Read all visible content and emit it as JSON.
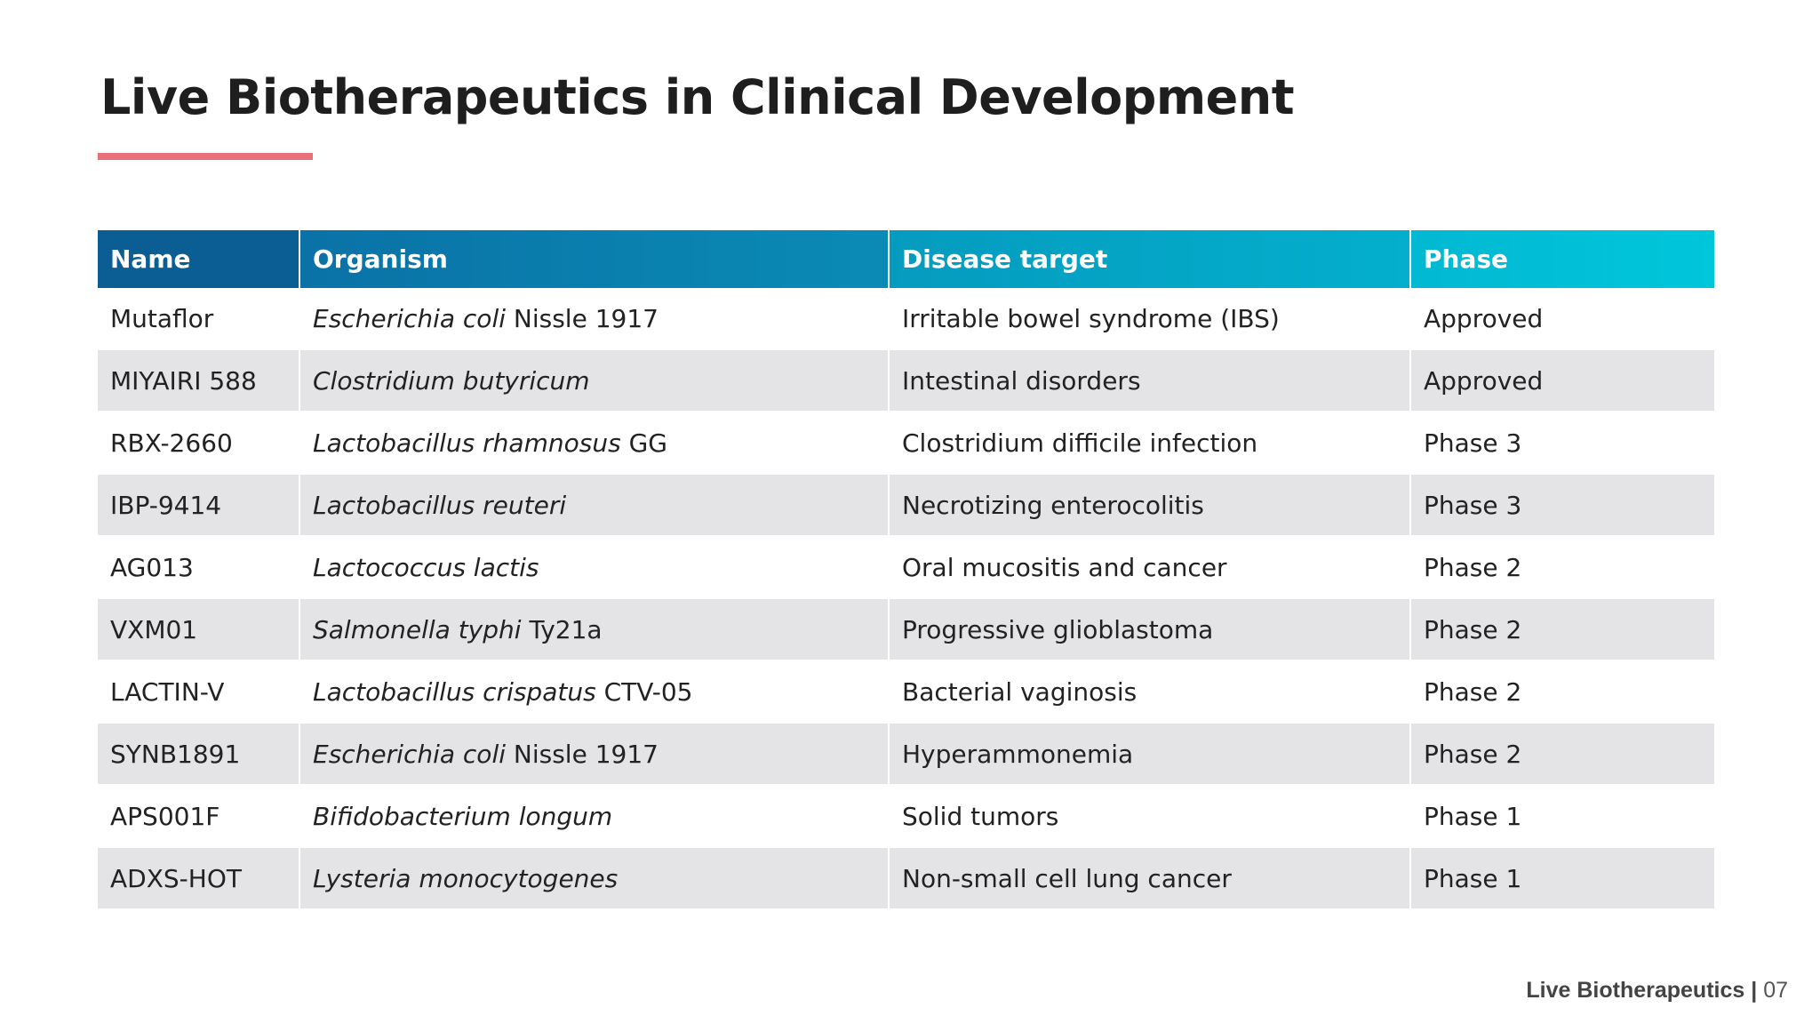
{
  "header": {
    "title": "Live Biotherapeutics in Clinical Development"
  },
  "table": {
    "columns": [
      "Name",
      "Organism",
      "Disease target",
      "Phase"
    ],
    "rows": [
      {
        "name": "Mutaflor",
        "organism": {
          "species": "Escherichia coli",
          "strain": "Nissle 1917"
        },
        "target": "Irritable bowel syndrome (IBS)",
        "phase": "Approved"
      },
      {
        "name": "MIYAIRI 588",
        "organism": {
          "species": "Clostridium butyricum"
        },
        "target": "Intestinal disorders",
        "phase": "Approved"
      },
      {
        "name": "RBX-2660",
        "organism": {
          "species": "Lactobacillus rhamnosus",
          "strain": "GG"
        },
        "target": "Clostridium difficile infection",
        "phase": "Phase 3"
      },
      {
        "name": "IBP-9414",
        "organism": {
          "species": "Lactobacillus reuteri"
        },
        "target": "Necrotizing enterocolitis",
        "phase": "Phase 3"
      },
      {
        "name": "AG013",
        "organism": {
          "species": "Lactococcus lactis"
        },
        "target": "Oral mucositis and cancer",
        "phase": "Phase 2"
      },
      {
        "name": "VXM01",
        "organism": {
          "species": "Salmonella typhi",
          "strain": "Ty21a"
        },
        "target": "Progressive glioblastoma",
        "phase": "Phase 2"
      },
      {
        "name": "LACTIN-V",
        "organism": {
          "species": "Lactobacillus crispatus",
          "strain": "CTV-05"
        },
        "target": "Bacterial vaginosis",
        "phase": "Phase 2"
      },
      {
        "name": "SYNB1891",
        "organism": {
          "species": "Escherichia coli",
          "strain": "Nissle 1917"
        },
        "target": "Hyperammonemia",
        "phase": "Phase 2"
      },
      {
        "name": "APS001F",
        "organism": {
          "species": "Bifidobacterium longum"
        },
        "target": "Solid tumors",
        "phase": "Phase 1"
      },
      {
        "name": "ADXS-HOT",
        "organism": {
          "species": "Lysteria monocytogenes"
        },
        "target": "Non-small cell lung cancer",
        "phase": "Phase 1"
      }
    ]
  },
  "footer": {
    "title": "Live Biotherapeutics",
    "separator": "|",
    "page": "07"
  }
}
